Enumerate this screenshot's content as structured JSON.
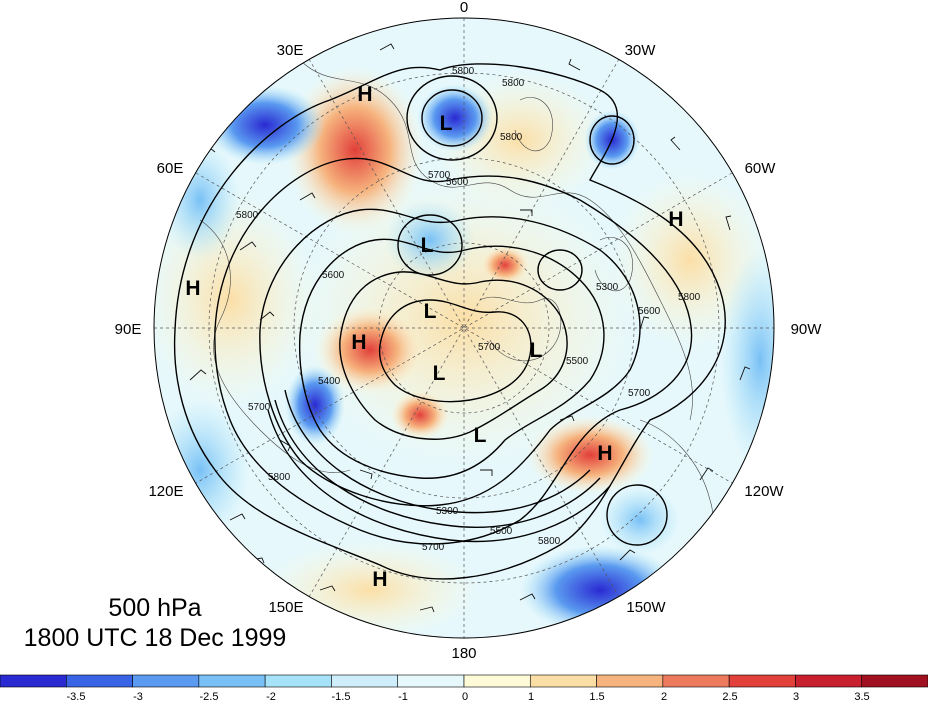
{
  "title": {
    "level": "500 hPa",
    "valid_time": "1800 UTC 18 Dec 1999"
  },
  "projection": "north-polar-stereographic",
  "longitude_labels": [
    "0",
    "30W",
    "60W",
    "90W",
    "120W",
    "150W",
    "180",
    "150E",
    "120E",
    "90E",
    "60E",
    "30E"
  ],
  "pressure_centers": [
    {
      "type": "H",
      "label": "H"
    },
    {
      "type": "H",
      "label": "H"
    },
    {
      "type": "H",
      "label": "H"
    },
    {
      "type": "H",
      "label": "H"
    },
    {
      "type": "H",
      "label": "H"
    },
    {
      "type": "H",
      "label": "H"
    },
    {
      "type": "L",
      "label": "L"
    },
    {
      "type": "L",
      "label": "L"
    },
    {
      "type": "L",
      "label": "L"
    },
    {
      "type": "L",
      "label": "L"
    },
    {
      "type": "L",
      "label": "L"
    },
    {
      "type": "L",
      "label": "L"
    }
  ],
  "contour_labels": [
    "5800",
    "5800",
    "5800",
    "5700",
    "5600",
    "5400",
    "5700",
    "5800",
    "5300",
    "5500",
    "5800",
    "5700",
    "5700",
    "5500",
    "5300",
    "5600",
    "5800",
    "5700",
    "5600",
    "5800"
  ],
  "colorbar": {
    "ticks": [
      "-3.5",
      "-3",
      "-2.5",
      "-2",
      "-1.5",
      "-1",
      "0",
      "1",
      "1.5",
      "2",
      "2.5",
      "3",
      "3.5"
    ],
    "colors": [
      "#2a2ad2",
      "#3a64e6",
      "#5a9af0",
      "#78c0f6",
      "#a6e2f8",
      "#cdeefa",
      "#e6f8fc",
      "#fffad8",
      "#fbdea6",
      "#f6b37e",
      "#ee7a5e",
      "#e2403a",
      "#c8202e",
      "#a01020"
    ]
  }
}
